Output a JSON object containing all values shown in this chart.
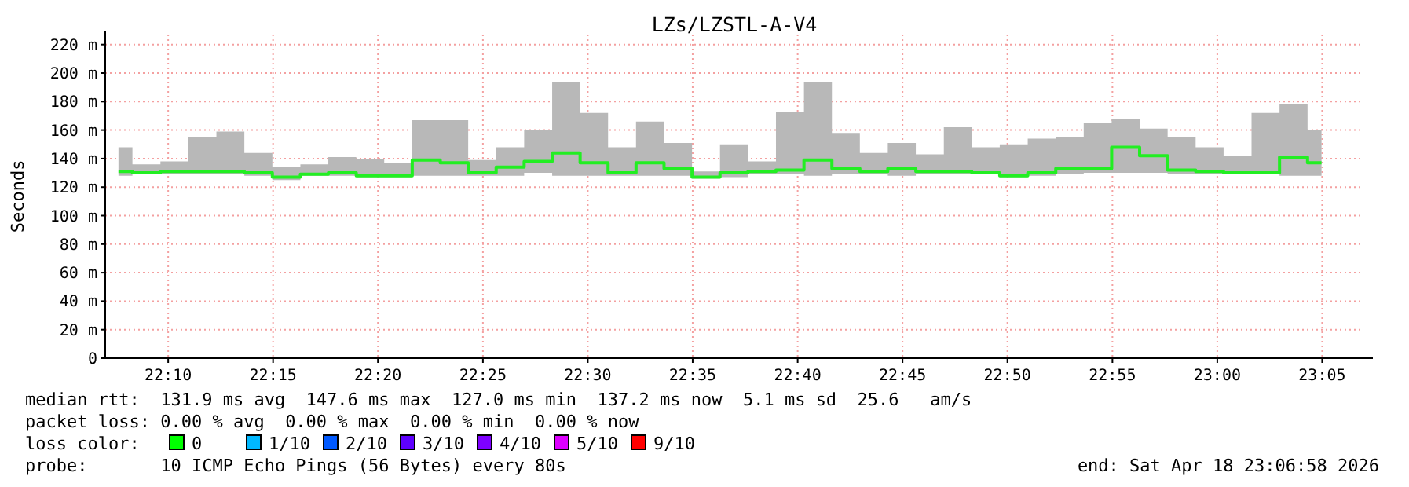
{
  "chart_data": {
    "type": "step",
    "title": "LZs/LZSTL-A-V4",
    "ylabel": "Seconds",
    "x": [
      22.1272,
      22.1494,
      22.1717,
      22.1939,
      22.2161,
      22.2383,
      22.2606,
      22.2828,
      22.305,
      22.3272,
      22.3494,
      22.3717,
      22.3939,
      22.4161,
      22.4383,
      22.4606,
      22.4828,
      22.505,
      22.5272,
      22.5494,
      22.5717,
      22.5939,
      22.6161,
      22.6383,
      22.6606,
      22.6828,
      22.705,
      22.7272,
      22.7494,
      22.7717,
      22.7939,
      22.8161,
      22.8383,
      22.8606,
      22.8828,
      22.905,
      22.9272,
      22.9494,
      22.9717,
      22.9939,
      23.0161,
      23.0383,
      23.0606,
      23.0828
    ],
    "series": [
      {
        "color": "#22ee22",
        "values": [
          131,
          130,
          131,
          131,
          131,
          130,
          127,
          129,
          130,
          128,
          128,
          139,
          137,
          130,
          134,
          138,
          144,
          137,
          130,
          137,
          133,
          127,
          130,
          131,
          132,
          139,
          133,
          131,
          133,
          131,
          131,
          130,
          128,
          130,
          133,
          133,
          148,
          142,
          132,
          131,
          130,
          130,
          141,
          137
        ],
        "lower": [
          128,
          129,
          129,
          129,
          129,
          128,
          125,
          128,
          128,
          127,
          127,
          128,
          128,
          128,
          128,
          130,
          128,
          128,
          128,
          128,
          128,
          126,
          127,
          129,
          129,
          128,
          129,
          129,
          128,
          129,
          129,
          129,
          127,
          128,
          129,
          130,
          130,
          130,
          129,
          129,
          129,
          129,
          128,
          128
        ],
        "upper": [
          148,
          136,
          138,
          155,
          159,
          144,
          134,
          136,
          141,
          140,
          137,
          167,
          167,
          139,
          148,
          160,
          194,
          172,
          148,
          166,
          151,
          131,
          150,
          138,
          173,
          194,
          158,
          144,
          151,
          143,
          162,
          148,
          150,
          154,
          155,
          165,
          168,
          161,
          155,
          148,
          142,
          172,
          178,
          160
        ]
      }
    ],
    "xlim": [
      22.1167,
      23.1161
    ],
    "xticks": [
      {
        "value": 22.1667,
        "label": "22:10"
      },
      {
        "value": 22.25,
        "label": "22:15"
      },
      {
        "value": 22.3333,
        "label": "22:20"
      },
      {
        "value": 22.4167,
        "label": "22:25"
      },
      {
        "value": 22.5,
        "label": "22:30"
      },
      {
        "value": 22.5833,
        "label": "22:35"
      },
      {
        "value": 22.6667,
        "label": "22:40"
      },
      {
        "value": 22.75,
        "label": "22:45"
      },
      {
        "value": 22.8333,
        "label": "22:50"
      },
      {
        "value": 22.9167,
        "label": "22:55"
      },
      {
        "value": 23,
        "label": "23:00"
      },
      {
        "value": 23.0833,
        "label": "23:05"
      }
    ],
    "ylim": [
      0,
      227
    ],
    "yticks": [
      0,
      {
        "value": 20,
        "label": "20 m"
      },
      {
        "value": 40,
        "label": "40 m"
      },
      {
        "value": 60,
        "label": "60 m"
      },
      {
        "value": 80,
        "label": "80 m"
      },
      {
        "value": 100,
        "label": "100 m"
      },
      {
        "value": 120,
        "label": "120 m"
      },
      {
        "value": 140,
        "label": "140 m"
      },
      {
        "value": 160,
        "label": "160 m"
      },
      {
        "value": 180,
        "label": "180 m"
      },
      {
        "value": 200,
        "label": "200 m"
      },
      {
        "value": 220,
        "label": "220 m"
      }
    ],
    "grid": true,
    "annotations": [
      "median rtt:  131.9 ms avg  147.6 ms max  127.0 ms min  137.2 ms now  5.1 ms sd  25.6   am/s",
      "packet loss: 0.00 % avg  0.00 % max  0.00 % min  0.00 % now",
      "loss color:",
      "0",
      "1/10",
      "2/10",
      "3/10",
      "4/10",
      "5/10",
      "9/10",
      "probe:       10 ICMP Echo Pings (56 Bytes) every 80s",
      "end: Sat Apr 18 23:06:58 2026"
    ]
  }
}
